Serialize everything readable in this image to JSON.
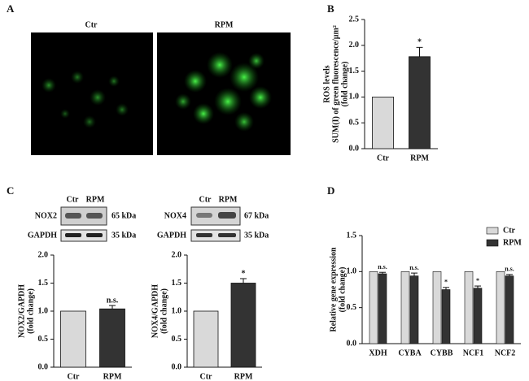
{
  "figure": {
    "panel_labels": [
      "A",
      "B",
      "C",
      "D"
    ],
    "images": [
      {
        "label": "Ctr"
      },
      {
        "label": "RPM"
      }
    ],
    "blots": [
      {
        "lanes": [
          "Ctr",
          "RPM"
        ],
        "rows": [
          {
            "protein": "NOX2",
            "size": "65 kDa"
          },
          {
            "protein": "GAPDH",
            "size": "35 kDa"
          }
        ]
      },
      {
        "lanes": [
          "Ctr",
          "RPM"
        ],
        "rows": [
          {
            "protein": "NOX4",
            "size": "67 kDa"
          },
          {
            "protein": "GAPDH",
            "size": "35 kDa"
          }
        ]
      }
    ]
  },
  "chart_data": [
    {
      "type": "bar",
      "ylabel": [
        "ROS levels",
        "SUM(I) of green fluorescence/µm²",
        "(fold change)"
      ],
      "categories": [
        "Ctr",
        "RPM"
      ],
      "values": [
        1.0,
        1.78
      ],
      "errors": [
        null,
        0.18
      ],
      "annotations": [
        null,
        "*"
      ],
      "colors": [
        "#d9d9d9",
        "#333333"
      ],
      "ylim": [
        0,
        2.5
      ],
      "yticks": [
        {
          "value": 0,
          "label": "0.0"
        },
        {
          "value": 0.5,
          "label": "0.5"
        },
        {
          "value": 1,
          "label": "1.0"
        },
        {
          "value": 1.5,
          "label": "1.5"
        },
        {
          "value": 2,
          "label": "2.0"
        },
        {
          "value": 2.5,
          "label": "2.5"
        }
      ]
    },
    {
      "type": "bar",
      "ylabel": [
        "NOX2/GAPDH",
        "(fold change)"
      ],
      "categories": [
        "Ctr",
        "RPM"
      ],
      "values": [
        1.0,
        1.04
      ],
      "errors": [
        null,
        0.06
      ],
      "annotations": [
        null,
        "n.s."
      ],
      "colors": [
        "#d9d9d9",
        "#333333"
      ],
      "ylim": [
        0,
        2
      ],
      "yticks": [
        {
          "value": 0,
          "label": "0.0"
        },
        {
          "value": 0.5,
          "label": "0.5"
        },
        {
          "value": 1,
          "label": "1.0"
        },
        {
          "value": 1.5,
          "label": "1.5"
        },
        {
          "value": 2,
          "label": "2.0"
        }
      ]
    },
    {
      "type": "bar",
      "ylabel": [
        "NOX4/GAPDH",
        "(fold change)"
      ],
      "categories": [
        "Ctr",
        "RPM"
      ],
      "values": [
        1.0,
        1.5
      ],
      "errors": [
        null,
        0.08
      ],
      "annotations": [
        null,
        "*"
      ],
      "colors": [
        "#d9d9d9",
        "#333333"
      ],
      "ylim": [
        0,
        2
      ],
      "yticks": [
        {
          "value": 0,
          "label": "0.0"
        },
        {
          "value": 0.5,
          "label": "0.5"
        },
        {
          "value": 1,
          "label": "1.0"
        },
        {
          "value": 1.5,
          "label": "1.5"
        },
        {
          "value": 2,
          "label": "2.0"
        }
      ]
    },
    {
      "type": "grouped-bar",
      "ylabel": [
        "Relative gene expression",
        "(fold change)"
      ],
      "categories": [
        "XDH",
        "CYBA",
        "CYBB",
        "NCF1",
        "NCF2"
      ],
      "series": [
        {
          "name": "Ctr",
          "color": "#d9d9d9",
          "values": [
            1.0,
            1.0,
            1.0,
            1.0,
            1.0
          ]
        },
        {
          "name": "RPM",
          "color": "#333333",
          "values": [
            0.97,
            0.94,
            0.75,
            0.77,
            0.94
          ],
          "errors": [
            0.02,
            0.04,
            0.03,
            0.03,
            0.02
          ],
          "annotations": [
            "n.s.",
            "n.s.",
            "*",
            "*",
            "n.s."
          ]
        }
      ],
      "legend": "top-right",
      "ylim": [
        0,
        1.5
      ],
      "yticks": [
        {
          "value": 0,
          "label": "0.0"
        },
        {
          "value": 0.5,
          "label": "0.5"
        },
        {
          "value": 1,
          "label": "1.0"
        },
        {
          "value": 1.5,
          "label": "1.5"
        }
      ]
    }
  ]
}
